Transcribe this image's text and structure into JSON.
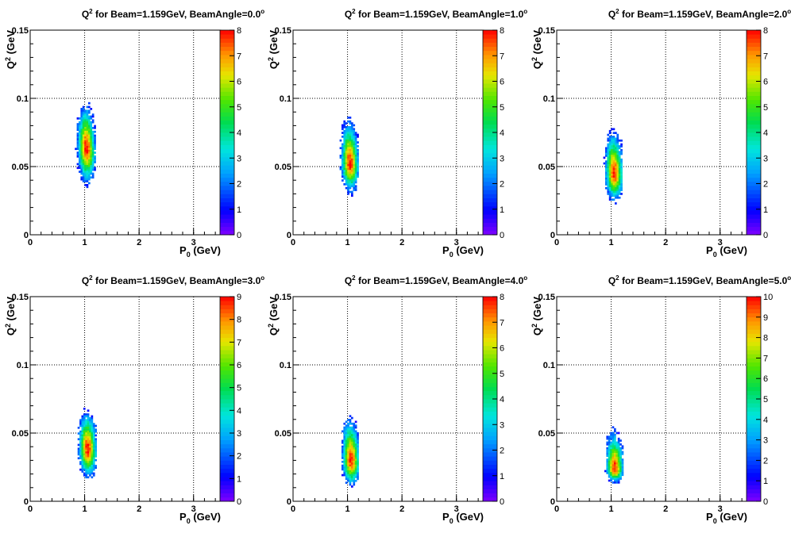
{
  "chart_data": [
    {
      "type": "heatmap",
      "title_prefix": "Q",
      "title_sup": "2",
      "title_main": " for Beam=1.159GeV, BeamAngle=0.0",
      "title_deg": "o",
      "xlabel_main": "P",
      "xlabel_sub": "0",
      "xlabel_unit": " (GeV)",
      "ylabel_main": "Q",
      "ylabel_sup": "2",
      "ylabel_unit": " (GeV",
      "xlim": [
        0,
        3.5
      ],
      "ylim": [
        0,
        0.15
      ],
      "xticks": [
        "0",
        "1",
        "2",
        "3"
      ],
      "yticks": [
        "0",
        "0.05",
        "0.1",
        "0.15"
      ],
      "zmax": 8,
      "zticks": [
        "0",
        "1",
        "2",
        "3",
        "4",
        "5",
        "6",
        "7",
        "8"
      ],
      "grid": true,
      "blob": {
        "x_center": 1.02,
        "y_center": 0.064,
        "y_top": 0.1,
        "y_bottom": 0.035,
        "x_left": 0.68,
        "x_right": 1.2
      }
    },
    {
      "type": "heatmap",
      "title_prefix": "Q",
      "title_sup": "2",
      "title_main": " for Beam=1.159GeV, BeamAngle=1.0",
      "title_deg": "o",
      "xlabel_main": "P",
      "xlabel_sub": "0",
      "xlabel_unit": " (GeV)",
      "ylabel_main": "Q",
      "ylabel_sup": "2",
      "ylabel_unit": " (GeV",
      "xlim": [
        0,
        3.5
      ],
      "ylim": [
        0,
        0.15
      ],
      "xticks": [
        "0",
        "1",
        "2",
        "3"
      ],
      "yticks": [
        "0",
        "0.05",
        "0.1",
        "0.15"
      ],
      "zmax": 8,
      "zticks": [
        "0",
        "1",
        "2",
        "3",
        "4",
        "5",
        "6",
        "7",
        "8"
      ],
      "grid": true,
      "blob": {
        "x_center": 1.03,
        "y_center": 0.053,
        "y_top": 0.088,
        "y_bottom": 0.029,
        "x_left": 0.68,
        "x_right": 1.2
      }
    },
    {
      "type": "heatmap",
      "title_prefix": "Q",
      "title_sup": "2",
      "title_main": " for Beam=1.159GeV, BeamAngle=2.0",
      "title_deg": "o",
      "xlabel_main": "P",
      "xlabel_sub": "0",
      "xlabel_unit": " (GeV)",
      "ylabel_main": "Q",
      "ylabel_sup": "2",
      "ylabel_unit": " (GeV",
      "xlim": [
        0,
        3.5
      ],
      "ylim": [
        0,
        0.15
      ],
      "xticks": [
        "0",
        "1",
        "2",
        "3"
      ],
      "yticks": [
        "0",
        "0.05",
        "0.1",
        "0.15"
      ],
      "zmax": 8,
      "zticks": [
        "0",
        "1",
        "2",
        "3",
        "4",
        "5",
        "6",
        "7",
        "8"
      ],
      "grid": true,
      "blob": {
        "x_center": 1.04,
        "y_center": 0.045,
        "y_top": 0.081,
        "y_bottom": 0.023,
        "x_left": 0.68,
        "x_right": 1.2
      }
    },
    {
      "type": "heatmap",
      "title_prefix": "Q",
      "title_sup": "2",
      "title_main": " for Beam=1.159GeV, BeamAngle=3.0",
      "title_deg": "o",
      "xlabel_main": "P",
      "xlabel_sub": "0",
      "xlabel_unit": " (GeV)",
      "ylabel_main": "Q",
      "ylabel_sup": "2",
      "ylabel_unit": " (GeV",
      "xlim": [
        0,
        3.5
      ],
      "ylim": [
        0,
        0.15
      ],
      "xticks": [
        "0",
        "1",
        "2",
        "3"
      ],
      "yticks": [
        "0",
        "0.05",
        "0.1",
        "0.15"
      ],
      "zmax": 9,
      "zticks": [
        "0",
        "1",
        "2",
        "3",
        "4",
        "5",
        "6",
        "7",
        "8",
        "9"
      ],
      "grid": true,
      "blob": {
        "x_center": 1.04,
        "y_center": 0.039,
        "y_top": 0.07,
        "y_bottom": 0.015,
        "x_left": 0.66,
        "x_right": 1.2
      }
    },
    {
      "type": "heatmap",
      "title_prefix": "Q",
      "title_sup": "2",
      "title_main": " for Beam=1.159GeV, BeamAngle=4.0",
      "title_deg": "o",
      "xlabel_main": "P",
      "xlabel_sub": "0",
      "xlabel_unit": " (GeV)",
      "ylabel_main": "Q",
      "ylabel_sup": "2",
      "ylabel_unit": " (GeV",
      "xlim": [
        0,
        3.5
      ],
      "ylim": [
        0,
        0.15
      ],
      "xticks": [
        "0",
        "1",
        "2",
        "3"
      ],
      "yticks": [
        "0",
        "0.05",
        "0.1",
        "0.15"
      ],
      "zmax": 8,
      "zticks": [
        "0",
        "1",
        "2",
        "3",
        "4",
        "5",
        "6",
        "7",
        "8"
      ],
      "grid": true,
      "blob": {
        "x_center": 1.05,
        "y_center": 0.03,
        "y_top": 0.066,
        "y_bottom": 0.01,
        "x_left": 0.68,
        "x_right": 1.2
      }
    },
    {
      "type": "heatmap",
      "title_prefix": "Q",
      "title_sup": "2",
      "title_main": " for Beam=1.159GeV, BeamAngle=5.0",
      "title_deg": "o",
      "xlabel_main": "P",
      "xlabel_sub": "0",
      "xlabel_unit": " (GeV)",
      "ylabel_main": "Q",
      "ylabel_sup": "2",
      "ylabel_unit": " (GeV",
      "xlim": [
        0,
        3.5
      ],
      "ylim": [
        0,
        0.15
      ],
      "xticks": [
        "0",
        "1",
        "2",
        "3"
      ],
      "yticks": [
        "0",
        "0.05",
        "0.1",
        "0.15"
      ],
      "zmax": 10,
      "zticks": [
        "0",
        "1",
        "2",
        "3",
        "4",
        "5",
        "6",
        "7",
        "8",
        "9",
        "10"
      ],
      "grid": true,
      "blob": {
        "x_center": 1.05,
        "y_center": 0.024,
        "y_top": 0.055,
        "y_bottom": 0.013,
        "x_left": 0.7,
        "x_right": 1.2
      }
    }
  ]
}
